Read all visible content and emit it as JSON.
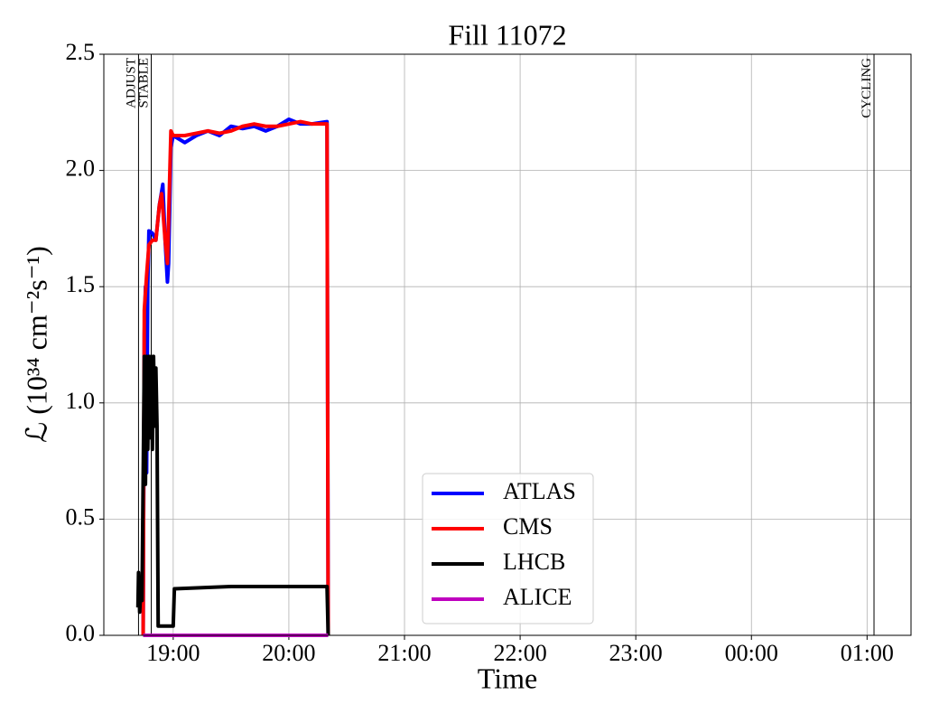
{
  "chart_data": {
    "type": "line",
    "title": "Fill 11072",
    "xlabel": "Time",
    "ylabel": "ℒ (10³⁴ cm⁻²s⁻¹)",
    "xlim": [
      18.4,
      25.38
    ],
    "ylim": [
      0,
      2.5
    ],
    "xticks": [
      {
        "value": 19,
        "label": "19:00"
      },
      {
        "value": 20,
        "label": "20:00"
      },
      {
        "value": 21,
        "label": "21:00"
      },
      {
        "value": 22,
        "label": "22:00"
      },
      {
        "value": 23,
        "label": "23:00"
      },
      {
        "value": 24,
        "label": "00:00"
      },
      {
        "value": 25,
        "label": "01:00"
      }
    ],
    "yticks": [
      {
        "value": 0,
        "label": "0.0"
      },
      0.5,
      {
        "value": 1,
        "label": "1.0"
      },
      1.5,
      {
        "value": 2,
        "label": "2.0"
      },
      2.5
    ],
    "grid": true,
    "legend": "lower center",
    "markers": [
      {
        "label": "ADJUST",
        "x": 18.7
      },
      {
        "label": "STABLE",
        "x": 18.81
      },
      {
        "label": "CYCLING",
        "x": 25.06
      }
    ],
    "series": [
      {
        "name": "ATLAS",
        "color": "#0000ff",
        "x": [
          18.74,
          18.75,
          18.76,
          18.77,
          18.78,
          18.79,
          18.82,
          18.85,
          18.88,
          18.91,
          18.93,
          18.95,
          18.96,
          18.98,
          19.0,
          19.1,
          19.2,
          19.3,
          19.4,
          19.5,
          19.6,
          19.7,
          19.8,
          19.9,
          20.0,
          20.1,
          20.2,
          20.33,
          20.34
        ],
        "values": [
          0,
          1.3,
          1.5,
          0.7,
          1.5,
          1.74,
          1.73,
          1.7,
          1.85,
          1.94,
          1.7,
          1.52,
          1.6,
          2.1,
          2.15,
          2.12,
          2.15,
          2.17,
          2.15,
          2.19,
          2.18,
          2.19,
          2.17,
          2.19,
          2.22,
          2.2,
          2.2,
          2.21,
          0
        ]
      },
      {
        "name": "CMS",
        "color": "#ff0000",
        "x": [
          18.74,
          18.75,
          18.77,
          18.79,
          18.82,
          18.85,
          18.88,
          18.9,
          18.93,
          18.95,
          18.98,
          19.0,
          19.1,
          19.2,
          19.3,
          19.4,
          19.5,
          19.6,
          19.7,
          19.8,
          19.9,
          20.0,
          20.1,
          20.2,
          20.33,
          20.34
        ],
        "values": [
          0,
          1.4,
          1.55,
          1.68,
          1.7,
          1.7,
          1.85,
          1.9,
          1.7,
          1.6,
          2.17,
          2.15,
          2.15,
          2.16,
          2.17,
          2.16,
          2.17,
          2.19,
          2.2,
          2.19,
          2.19,
          2.2,
          2.21,
          2.2,
          2.2,
          0
        ]
      },
      {
        "name": "LHCB",
        "color": "#000000",
        "x": [
          18.695,
          18.7,
          18.71,
          18.72,
          18.73,
          18.75,
          18.76,
          18.77,
          18.78,
          18.79,
          18.8,
          18.81,
          18.82,
          18.83,
          18.84,
          18.85,
          18.86,
          18.87,
          19.0,
          19.01,
          19.5,
          20.0,
          20.33,
          20.34
        ],
        "values": [
          0.12,
          0.27,
          0.1,
          0.2,
          0.15,
          1.2,
          0.65,
          1.2,
          0.8,
          1.2,
          0.85,
          1.2,
          0.8,
          1.2,
          0.9,
          1.15,
          0.9,
          0.04,
          0.04,
          0.2,
          0.21,
          0.21,
          0.21,
          0
        ]
      },
      {
        "name": "ALICE",
        "color": "#bf00bf",
        "x": [
          18.74,
          20.34
        ],
        "values": [
          0,
          0
        ]
      }
    ]
  }
}
